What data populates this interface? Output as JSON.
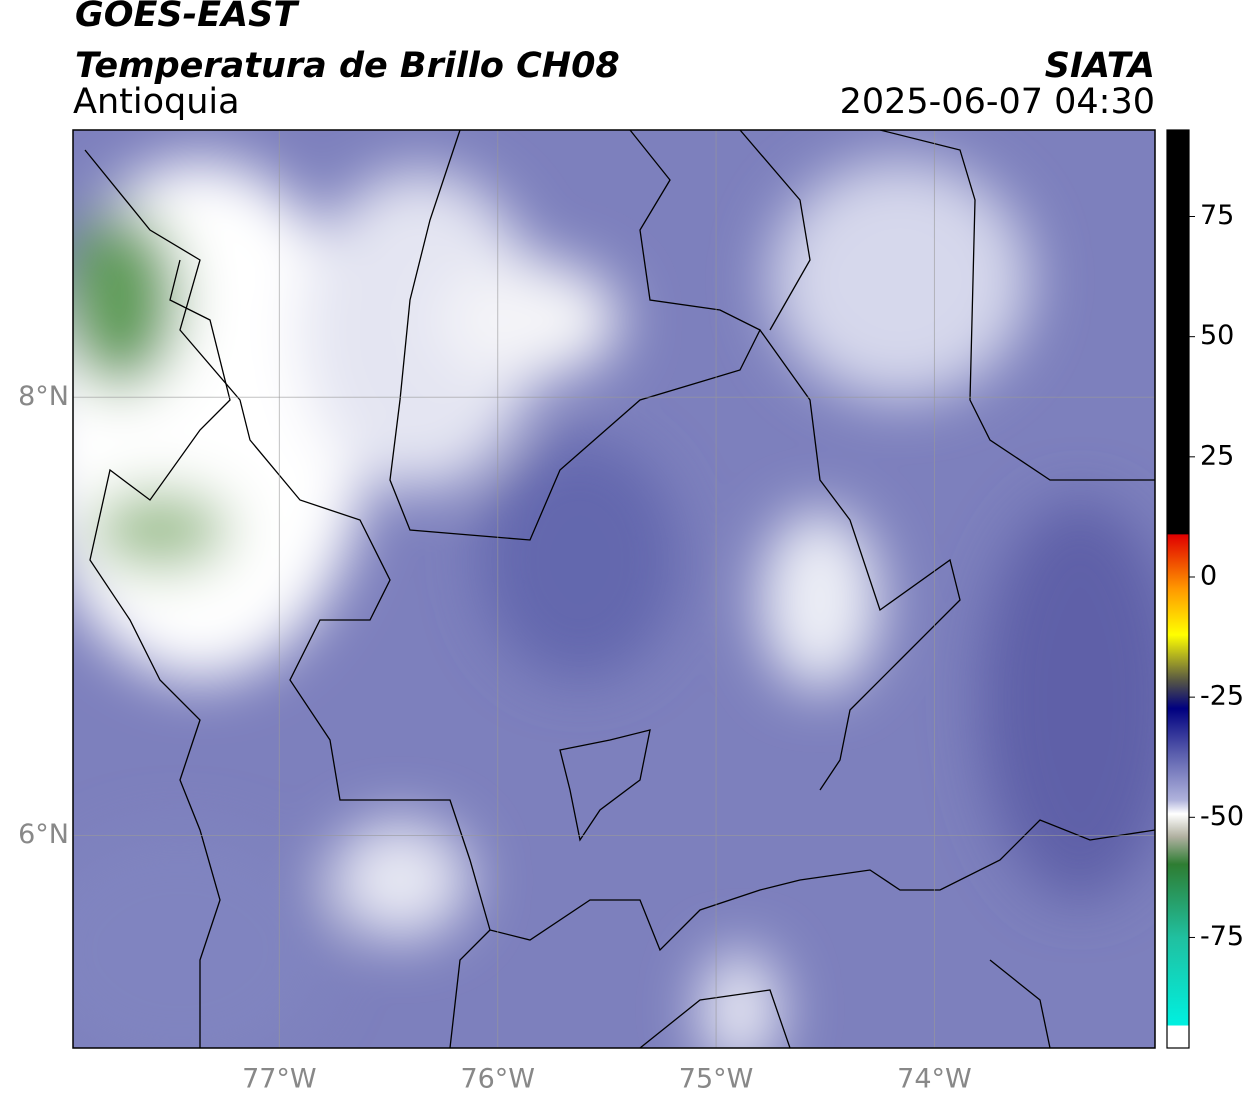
{
  "header": {
    "title": "GOES-EAST",
    "subtitle": "Temperatura de Brillo CH08",
    "region": "Antioquia",
    "source": "SIATA",
    "datetime": "2025-06-07 04:30"
  },
  "map": {
    "xlim": [
      -77.945,
      -72.99
    ],
    "ylim": [
      5.03,
      9.22
    ],
    "xticks": [
      {
        "value": -77,
        "label": "77°W"
      },
      {
        "value": -76,
        "label": "76°W"
      },
      {
        "value": -75,
        "label": "75°W"
      },
      {
        "value": -74,
        "label": "74°W"
      }
    ],
    "yticks": [
      {
        "value": 8,
        "label": "8°N"
      },
      {
        "value": 6,
        "label": "6°N"
      }
    ],
    "grid": true
  },
  "colorbar": {
    "lim": [
      -98,
      93
    ],
    "ticks": [
      -75,
      -50,
      -25,
      0,
      25,
      50,
      75
    ]
  }
}
